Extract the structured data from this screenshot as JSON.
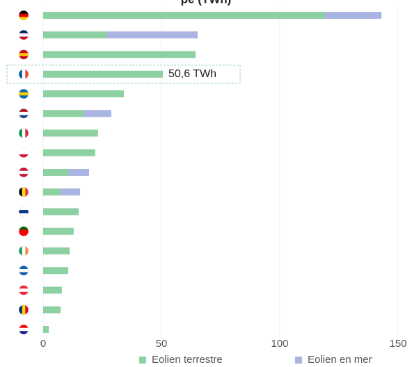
{
  "chart_data": {
    "type": "bar",
    "orientation": "horizontal",
    "stacked": true,
    "title": "pe (TWh)",
    "categories": [
      null,
      null,
      null,
      null,
      null,
      null,
      null,
      null,
      null,
      null,
      null,
      null,
      null,
      null,
      null,
      null,
      null
    ],
    "series": [
      {
        "name": "Eolien terrestre",
        "color": "#8dd0a2",
        "values": [
          119,
          26.8,
          64.4,
          50.6,
          34.1,
          17,
          23.2,
          22,
          10.6,
          7.4,
          15,
          12.9,
          11.2,
          10.6,
          7.9,
          7.4,
          2.4
        ]
      },
      {
        "name": "Eolien en mer",
        "color": "#a9b4e2",
        "values": [
          24,
          38.5,
          0,
          0,
          0,
          11.8,
          0,
          0,
          8.8,
          8.2,
          0,
          0,
          0,
          0,
          0,
          0,
          0
        ]
      }
    ],
    "annotation": "50,6 TWh",
    "xlim": [
      0,
      150
    ],
    "xticks": [
      0,
      50,
      100,
      150
    ],
    "grid": true
  }
}
